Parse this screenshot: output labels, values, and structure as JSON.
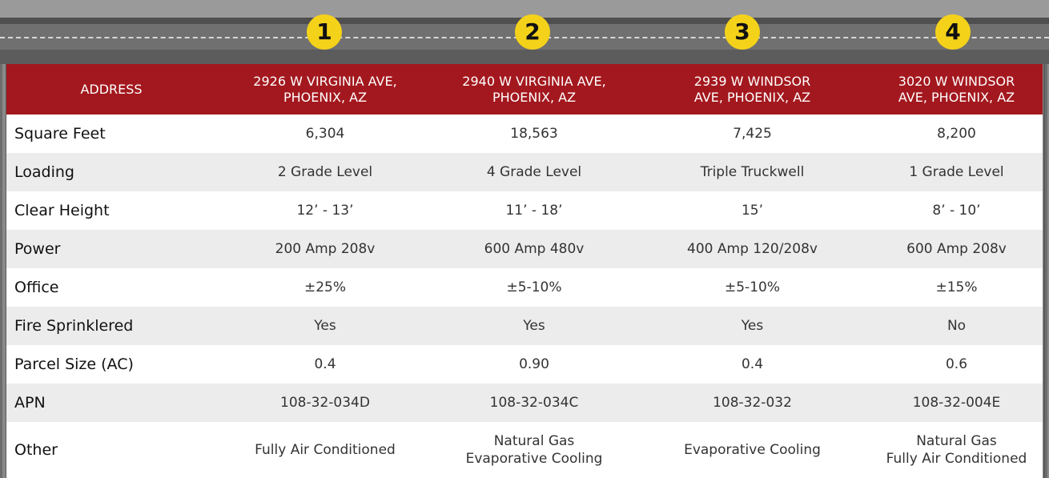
{
  "markers": [
    "1",
    "2",
    "3",
    "4"
  ],
  "table": {
    "header": [
      "ADDRESS",
      [
        "2926 W VIRGINIA AVE,",
        "PHOENIX, AZ"
      ],
      [
        "2940 W VIRGINIA AVE,",
        "PHOENIX, AZ"
      ],
      [
        "2939 W WINDSOR",
        "AVE, PHOENIX, AZ"
      ],
      [
        "3020 W WINDSOR",
        "AVE, PHOENIX, AZ"
      ]
    ],
    "rows": [
      [
        "Square Feet",
        "6,304",
        "18,563",
        "7,425",
        "8,200"
      ],
      [
        "Loading",
        "2 Grade Level",
        "4 Grade Level",
        "Triple Truckwell",
        "1 Grade Level"
      ],
      [
        "Clear Height",
        "12’ - 13’",
        "11’ - 18’",
        "15’",
        "8’ - 10’"
      ],
      [
        "Power",
        "200 Amp 208v",
        "600 Amp 480v",
        "400 Amp 120/208v",
        "600 Amp 208v"
      ],
      [
        "Office",
        "±25%",
        "±5-10%",
        "±5-10%",
        "±15%"
      ],
      [
        "Fire Sprinklered",
        "Yes",
        "Yes",
        "Yes",
        "No"
      ],
      [
        "Parcel Size (AC)",
        "0.4",
        "0.90",
        "0.4",
        "0.6"
      ],
      [
        "APN",
        "108-32-034D",
        "108-32-034C",
        "108-32-032",
        "108-32-004E"
      ],
      [
        "Other",
        "Fully Air Conditioned",
        [
          "Natural Gas",
          "Evaporative Cooling"
        ],
        "Evaporative Cooling",
        [
          "Natural Gas",
          "Fully Air Conditioned"
        ]
      ]
    ]
  }
}
